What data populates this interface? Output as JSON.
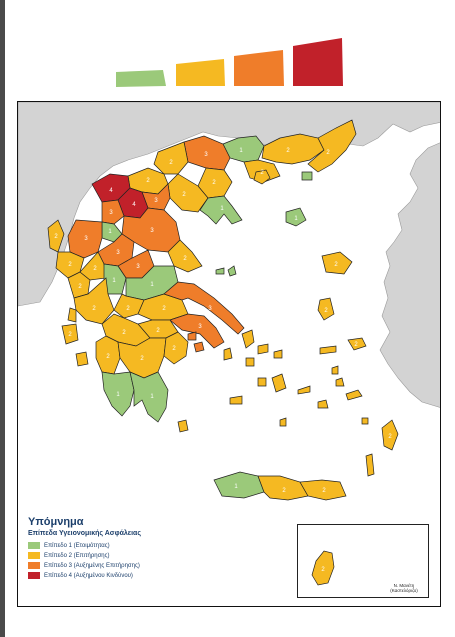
{
  "header": {
    "level_bar_colors": [
      "#9bc97a",
      "#f5b922",
      "#ef7d2a",
      "#c1212a"
    ]
  },
  "legend": {
    "title": "Υπόμνημα",
    "subtitle": "Επίπεδα Υγειονομικής Ασφάλειας",
    "items": [
      {
        "label": "Επίπεδο 1 (Ετοιμότητας)",
        "color": "#9bc97a"
      },
      {
        "label": "Επίπεδο 2 (Επιτήρησης)",
        "color": "#f5b922"
      },
      {
        "label": "Επίπεδο 3 (Αυξημένης Επιτήρησης)",
        "color": "#ef7d2a"
      },
      {
        "label": "Επίπεδο 4 (Αυξημένου Κινδύνου)",
        "color": "#c1212a"
      }
    ]
  },
  "inset": {
    "credit": "Ν. Μανέτη (Καστελόριζο)",
    "region_level": "2"
  },
  "map": {
    "region_levels": [
      "1",
      "2",
      "2",
      "2",
      "3",
      "2",
      "2",
      "2",
      "1",
      "2",
      "3",
      "4",
      "4",
      "3",
      "1",
      "3",
      "3",
      "2",
      "3",
      "3",
      "2",
      "2",
      "2",
      "1",
      "2",
      "1",
      "2",
      "2",
      "3",
      "3",
      "2",
      "2",
      "2",
      "1",
      "1",
      "2",
      "2",
      "1",
      "1",
      "2",
      "2",
      "2",
      "2",
      "2",
      "2",
      "2",
      "2"
    ]
  }
}
